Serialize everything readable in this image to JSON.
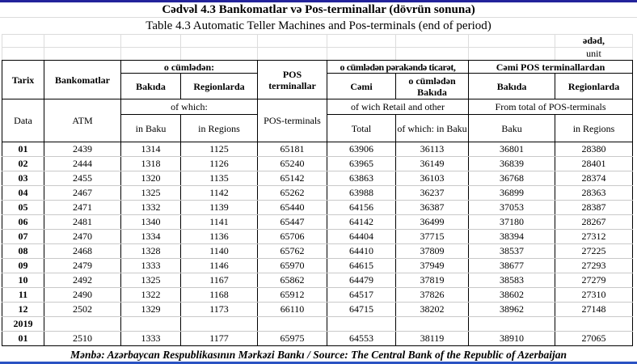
{
  "page": {
    "title_az": "Cədvəl 4.3 Bankomatlar və Pos-terminallar (dövrün sonuna)",
    "title_en": "Table 4.3 Automatic Teller Machines and Pos-terminals (end of period)",
    "unit_az": "ədəd,",
    "unit_en": "unit",
    "source": "Mənbə: Azərbaycan Respublikasının Mərkəzi Bankı / Source: The Central Bank of the Republic of Azerbaijan",
    "colors": {
      "top_line": "#23239b",
      "bottom_line": "#2a52c3",
      "table_border": "#000000",
      "row_grid_line": "#c9c9c9",
      "faint_grid_line": "#dcdcdc"
    }
  },
  "header": {
    "tarix": "Tarix",
    "data_en": "Data",
    "bankomatlar": "Bankomatlar",
    "atm": "ATM",
    "o_cumleden": "o cümlədən:",
    "of_which": "of which:",
    "bakida": "Bakıda",
    "in_baku": "in Baku",
    "regionlarda": "Regionlarda",
    "in_regions": "in Regions",
    "pos_terminallar": "POS terminallar",
    "pos_terminals": "POS-terminals",
    "retail_az": "o cümlədən pərakəndə ticarət,",
    "retail_en": "of wich Retail and other",
    "cemi": "Cəmi",
    "total": "Total",
    "o_cumleden_bakida": "o cümlədən Bakıda",
    "of_which_in_baku": "of which: in Baku",
    "cemi_pos": "Cəmi POS terminallardan",
    "from_total": "From total of POS-terminals",
    "bakida2": "Bakıda",
    "baku": "Baku",
    "regionlarda2": "Regionlarda",
    "in_regions2": "in Regions"
  },
  "table": {
    "rows": [
      {
        "label": "01",
        "type": "data",
        "values": [
          2439,
          1314,
          1125,
          65181,
          63906,
          36113,
          36801,
          28380
        ]
      },
      {
        "label": "02",
        "type": "data",
        "values": [
          2444,
          1318,
          1126,
          65240,
          63965,
          36149,
          36839,
          28401
        ]
      },
      {
        "label": "03",
        "type": "data",
        "values": [
          2455,
          1320,
          1135,
          65142,
          63863,
          36103,
          36768,
          28374
        ]
      },
      {
        "label": "04",
        "type": "data",
        "values": [
          2467,
          1325,
          1142,
          65262,
          63988,
          36237,
          36899,
          28363
        ]
      },
      {
        "label": "05",
        "type": "data",
        "values": [
          2471,
          1332,
          1139,
          65440,
          64156,
          36387,
          37053,
          28387
        ]
      },
      {
        "label": "06",
        "type": "data",
        "values": [
          2481,
          1340,
          1141,
          65447,
          64142,
          36499,
          37180,
          28267
        ]
      },
      {
        "label": "07",
        "type": "data",
        "values": [
          2470,
          1334,
          1136,
          65706,
          64404,
          37715,
          38394,
          27312
        ]
      },
      {
        "label": "08",
        "type": "data",
        "values": [
          2468,
          1328,
          1140,
          65762,
          64410,
          37809,
          38537,
          27225
        ]
      },
      {
        "label": "09",
        "type": "data",
        "values": [
          2479,
          1333,
          1146,
          65970,
          64615,
          37949,
          38677,
          27293
        ]
      },
      {
        "label": "10",
        "type": "data",
        "values": [
          2492,
          1325,
          1167,
          65862,
          64479,
          37819,
          38583,
          27279
        ]
      },
      {
        "label": "11",
        "type": "data",
        "values": [
          2490,
          1322,
          1168,
          65912,
          64517,
          37826,
          38602,
          27310
        ]
      },
      {
        "label": "12",
        "type": "data",
        "values": [
          2502,
          1329,
          1173,
          66110,
          64715,
          38202,
          38962,
          27148
        ]
      },
      {
        "label": "2019",
        "type": "year",
        "values": [
          "",
          "",
          "",
          "",
          "",
          "",
          "",
          ""
        ]
      },
      {
        "label": "01",
        "type": "data",
        "values": [
          2510,
          1333,
          1177,
          65975,
          64553,
          38119,
          38910,
          27065
        ]
      }
    ]
  }
}
